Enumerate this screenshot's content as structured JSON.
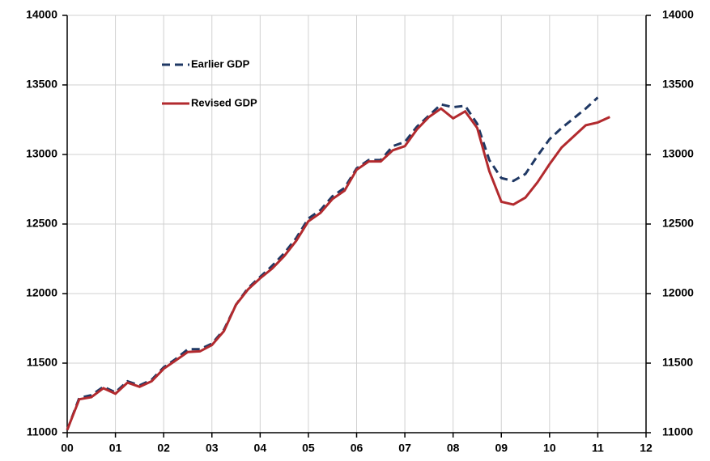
{
  "chart_data": {
    "type": "line",
    "x": [
      0,
      0.25,
      0.5,
      0.75,
      1,
      1.25,
      1.5,
      1.75,
      2,
      2.25,
      2.5,
      2.75,
      3,
      3.25,
      3.5,
      3.75,
      4,
      4.25,
      4.5,
      4.75,
      5,
      5.25,
      5.5,
      5.75,
      6,
      6.25,
      6.5,
      6.75,
      7,
      7.25,
      7.5,
      7.75,
      8,
      8.25,
      8.5,
      8.75,
      9,
      9.25,
      9.5,
      9.75,
      10,
      10.25,
      10.5,
      10.75,
      11,
      11.25
    ],
    "series": [
      {
        "name": "Earlier GDP",
        "color": "#1f3864",
        "dashed": true,
        "values": [
          11020,
          11250,
          11270,
          11330,
          11290,
          11370,
          11340,
          11380,
          11470,
          11530,
          11600,
          11600,
          11640,
          11740,
          11920,
          12040,
          12120,
          12200,
          12290,
          12400,
          12540,
          12600,
          12700,
          12760,
          12900,
          12960,
          12960,
          13060,
          13090,
          13200,
          13280,
          13360,
          13340,
          13350,
          13220,
          12960,
          12830,
          12810,
          12860,
          12990,
          13110,
          13190,
          13260,
          13330,
          13410,
          null
        ]
      },
      {
        "name": "Revised GDP",
        "color": "#b22a2e",
        "dashed": false,
        "values": [
          11020,
          11240,
          11255,
          11320,
          11280,
          11360,
          11330,
          11370,
          11460,
          11520,
          11580,
          11585,
          11630,
          11730,
          11920,
          12030,
          12110,
          12180,
          12270,
          12380,
          12520,
          12580,
          12680,
          12740,
          12890,
          12950,
          12950,
          13030,
          13060,
          13180,
          13270,
          13330,
          13260,
          13310,
          13190,
          12880,
          12660,
          12640,
          12690,
          12800,
          12930,
          13050,
          13130,
          13210,
          13230,
          13270
        ]
      }
    ],
    "xlim": [
      0,
      12
    ],
    "xticks": [
      {
        "value": 0,
        "label": "00"
      },
      {
        "value": 1,
        "label": "01"
      },
      {
        "value": 2,
        "label": "02"
      },
      {
        "value": 3,
        "label": "03"
      },
      {
        "value": 4,
        "label": "04"
      },
      {
        "value": 5,
        "label": "05"
      },
      {
        "value": 6,
        "label": "06"
      },
      {
        "value": 7,
        "label": "07"
      },
      {
        "value": 8,
        "label": "08"
      },
      {
        "value": 9,
        "label": "09"
      },
      {
        "value": 10,
        "label": "10"
      },
      {
        "value": 11,
        "label": "11"
      },
      {
        "value": 12,
        "label": "12"
      }
    ],
    "ylim": [
      11000,
      14000
    ],
    "yticks": [
      11000,
      11500,
      12000,
      12500,
      13000,
      13500,
      14000
    ],
    "y2lim": [
      11000,
      14000
    ],
    "y2ticks": [
      11000,
      11500,
      12000,
      12500,
      13000,
      13500,
      14000
    ],
    "grid": true
  }
}
